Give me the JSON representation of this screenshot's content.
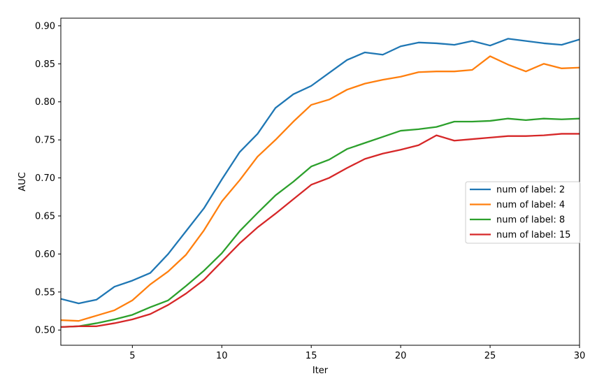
{
  "chart_data": {
    "type": "line",
    "title": "",
    "xlabel": "Iter",
    "ylabel": "AUC",
    "xlim": [
      1,
      30
    ],
    "ylim": [
      0.48,
      0.91
    ],
    "xticks": [
      5,
      10,
      15,
      20,
      25,
      30
    ],
    "yticks": [
      0.5,
      0.55,
      0.6,
      0.65,
      0.7,
      0.75,
      0.8,
      0.85,
      0.9
    ],
    "ytick_labels": [
      "0.50",
      "0.55",
      "0.60",
      "0.65",
      "0.70",
      "0.75",
      "0.80",
      "0.85",
      "0.90"
    ],
    "grid": false,
    "legend_position": "center-right",
    "x": [
      1,
      2,
      3,
      4,
      5,
      6,
      7,
      8,
      9,
      10,
      11,
      12,
      13,
      14,
      15,
      16,
      17,
      18,
      19,
      20,
      21,
      22,
      23,
      24,
      25,
      26,
      27,
      28,
      29,
      30
    ],
    "series": [
      {
        "name": "num of label: 2",
        "color": "#1f77b4",
        "values": [
          0.541,
          0.535,
          0.54,
          0.557,
          0.565,
          0.575,
          0.6,
          0.63,
          0.66,
          0.698,
          0.734,
          0.758,
          0.792,
          0.81,
          0.821,
          0.838,
          0.855,
          0.865,
          0.862,
          0.873,
          0.878,
          0.877,
          0.875,
          0.88,
          0.874,
          0.883,
          0.88,
          0.877,
          0.875,
          0.882
        ]
      },
      {
        "name": "num of label: 4",
        "color": "#ff7f0e",
        "values": [
          0.513,
          0.512,
          0.519,
          0.526,
          0.539,
          0.56,
          0.577,
          0.599,
          0.631,
          0.669,
          0.697,
          0.728,
          0.75,
          0.774,
          0.796,
          0.803,
          0.816,
          0.824,
          0.829,
          0.833,
          0.839,
          0.84,
          0.84,
          0.842,
          0.86,
          0.849,
          0.84,
          0.85,
          0.844,
          0.845
        ]
      },
      {
        "name": "num of label: 8",
        "color": "#2ca02c",
        "values": [
          0.504,
          0.505,
          0.509,
          0.514,
          0.52,
          0.53,
          0.539,
          0.558,
          0.578,
          0.601,
          0.63,
          0.654,
          0.677,
          0.695,
          0.715,
          0.724,
          0.738,
          0.746,
          0.754,
          0.762,
          0.764,
          0.767,
          0.774,
          0.774,
          0.775,
          0.778,
          0.776,
          0.778,
          0.777,
          0.778
        ]
      },
      {
        "name": "num of label: 15",
        "color": "#d62728",
        "values": [
          0.504,
          0.505,
          0.505,
          0.509,
          0.514,
          0.521,
          0.533,
          0.548,
          0.566,
          0.59,
          0.614,
          0.635,
          0.653,
          0.672,
          0.691,
          0.7,
          0.713,
          0.725,
          0.732,
          0.737,
          0.743,
          0.756,
          0.749,
          0.751,
          0.753,
          0.755,
          0.755,
          0.756,
          0.758,
          0.758
        ]
      }
    ]
  }
}
